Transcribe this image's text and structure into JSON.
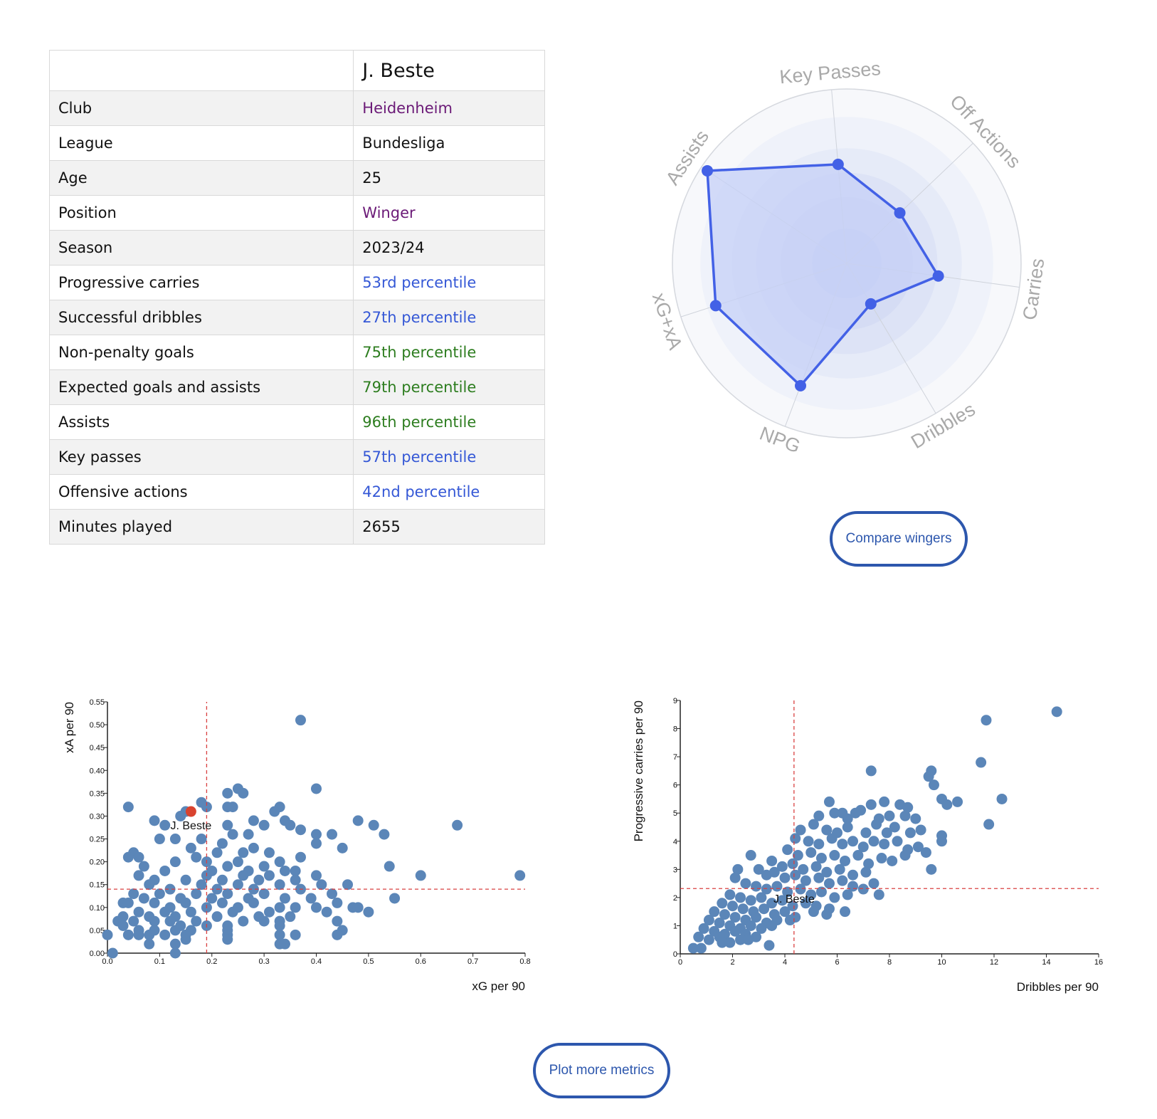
{
  "table": {
    "player_name": "J. Beste",
    "rows": [
      {
        "label": "Club",
        "value": "Heidenheim",
        "color": "#6b1a77"
      },
      {
        "label": "League",
        "value": "Bundesliga",
        "color": "#111111"
      },
      {
        "label": "Age",
        "value": "25",
        "color": "#111111"
      },
      {
        "label": "Position",
        "value": "Winger",
        "color": "#6b1a77"
      },
      {
        "label": "Season",
        "value": "2023/24",
        "color": "#111111"
      },
      {
        "label": "Progressive carries",
        "value": "53rd percentile",
        "color": "#3558d6"
      },
      {
        "label": "Successful dribbles",
        "value": "27th percentile",
        "color": "#3558d6"
      },
      {
        "label": "Non-penalty goals",
        "value": "75th percentile",
        "color": "#2d7d1f"
      },
      {
        "label": "Expected goals and assists",
        "value": "79th percentile",
        "color": "#2d7d1f"
      },
      {
        "label": "Assists",
        "value": "96th percentile",
        "color": "#2d7d1f"
      },
      {
        "label": "Key passes",
        "value": "57th percentile",
        "color": "#3558d6"
      },
      {
        "label": "Offensive actions",
        "value": "42nd percentile",
        "color": "#3558d6"
      },
      {
        "label": "Minutes played",
        "value": "2655",
        "color": "#111111"
      }
    ]
  },
  "buttons": {
    "compare_label": "Compare wingers",
    "plot_more_label": "Plot more metrics"
  },
  "colors": {
    "radar_line": "#4361e6",
    "radar_fill": "#c5d0f7",
    "scatter_point": "#5b86b8",
    "highlight_point": "#d9432f",
    "reference_line": "#d94040",
    "button_border": "#2d57ad"
  },
  "chart_data": [
    {
      "type": "radar",
      "axes": [
        "Key Passes",
        "Off Actions",
        "Carries",
        "Dribbles",
        "NPG",
        "xG+xA",
        "Assists"
      ],
      "values": [
        0.57,
        0.42,
        0.53,
        0.27,
        0.75,
        0.79,
        0.96
      ],
      "max": 1
    },
    {
      "type": "scatter",
      "xlabel": "xG per 90",
      "ylabel": "xA per 90",
      "xlim": [
        0,
        0.8
      ],
      "ylim": [
        0,
        0.55
      ],
      "xticks": [
        "0.0",
        "0.1",
        "0.2",
        "0.3",
        "0.4",
        "0.5",
        "0.6",
        "0.7",
        "0.8"
      ],
      "yticks": [
        "0.00",
        "0.05",
        "0.10",
        "0.15",
        "0.20",
        "0.25",
        "0.30",
        "0.35",
        "0.40",
        "0.45",
        "0.50",
        "0.55"
      ],
      "xref": 0.19,
      "yref": 0.14,
      "highlight": {
        "name": "J. Beste",
        "x": 0.16,
        "y": 0.31
      },
      "points": [
        [
          0.37,
          0.51
        ],
        [
          0.4,
          0.36
        ],
        [
          0.25,
          0.36
        ],
        [
          0.26,
          0.35
        ],
        [
          0.23,
          0.35
        ],
        [
          0.04,
          0.32
        ],
        [
          0.18,
          0.33
        ],
        [
          0.24,
          0.32
        ],
        [
          0.23,
          0.32
        ],
        [
          0.19,
          0.32
        ],
        [
          0.33,
          0.32
        ],
        [
          0.32,
          0.31
        ],
        [
          0.15,
          0.31
        ],
        [
          0.14,
          0.3
        ],
        [
          0.09,
          0.29
        ],
        [
          0.48,
          0.29
        ],
        [
          0.67,
          0.28
        ],
        [
          0.51,
          0.28
        ],
        [
          0.11,
          0.28
        ],
        [
          0.23,
          0.28
        ],
        [
          0.28,
          0.29
        ],
        [
          0.3,
          0.28
        ],
        [
          0.34,
          0.29
        ],
        [
          0.35,
          0.28
        ],
        [
          0.37,
          0.27
        ],
        [
          0.4,
          0.26
        ],
        [
          0.43,
          0.26
        ],
        [
          0.53,
          0.26
        ],
        [
          0.1,
          0.25
        ],
        [
          0.13,
          0.25
        ],
        [
          0.18,
          0.25
        ],
        [
          0.24,
          0.26
        ],
        [
          0.27,
          0.26
        ],
        [
          0.22,
          0.24
        ],
        [
          0.4,
          0.24
        ],
        [
          0.45,
          0.23
        ],
        [
          0.16,
          0.23
        ],
        [
          0.21,
          0.22
        ],
        [
          0.26,
          0.22
        ],
        [
          0.28,
          0.23
        ],
        [
          0.31,
          0.22
        ],
        [
          0.37,
          0.21
        ],
        [
          0.05,
          0.22
        ],
        [
          0.04,
          0.21
        ],
        [
          0.06,
          0.21
        ],
        [
          0.13,
          0.2
        ],
        [
          0.17,
          0.21
        ],
        [
          0.19,
          0.2
        ],
        [
          0.23,
          0.19
        ],
        [
          0.25,
          0.2
        ],
        [
          0.3,
          0.19
        ],
        [
          0.33,
          0.2
        ],
        [
          0.36,
          0.18
        ],
        [
          0.07,
          0.19
        ],
        [
          0.11,
          0.18
        ],
        [
          0.2,
          0.18
        ],
        [
          0.27,
          0.18
        ],
        [
          0.34,
          0.18
        ],
        [
          0.4,
          0.17
        ],
        [
          0.54,
          0.19
        ],
        [
          0.6,
          0.17
        ],
        [
          0.79,
          0.17
        ],
        [
          0.06,
          0.17
        ],
        [
          0.09,
          0.16
        ],
        [
          0.15,
          0.16
        ],
        [
          0.19,
          0.17
        ],
        [
          0.22,
          0.16
        ],
        [
          0.26,
          0.17
        ],
        [
          0.29,
          0.16
        ],
        [
          0.31,
          0.17
        ],
        [
          0.36,
          0.16
        ],
        [
          0.41,
          0.15
        ],
        [
          0.46,
          0.15
        ],
        [
          0.08,
          0.15
        ],
        [
          0.12,
          0.14
        ],
        [
          0.18,
          0.15
        ],
        [
          0.21,
          0.14
        ],
        [
          0.25,
          0.15
        ],
        [
          0.28,
          0.14
        ],
        [
          0.33,
          0.15
        ],
        [
          0.37,
          0.14
        ],
        [
          0.43,
          0.13
        ],
        [
          0.05,
          0.13
        ],
        [
          0.07,
          0.12
        ],
        [
          0.1,
          0.13
        ],
        [
          0.14,
          0.12
        ],
        [
          0.17,
          0.13
        ],
        [
          0.2,
          0.12
        ],
        [
          0.23,
          0.13
        ],
        [
          0.27,
          0.12
        ],
        [
          0.3,
          0.13
        ],
        [
          0.34,
          0.12
        ],
        [
          0.39,
          0.12
        ],
        [
          0.44,
          0.11
        ],
        [
          0.55,
          0.12
        ],
        [
          0.03,
          0.11
        ],
        [
          0.04,
          0.11
        ],
        [
          0.09,
          0.11
        ],
        [
          0.12,
          0.1
        ],
        [
          0.15,
          0.11
        ],
        [
          0.19,
          0.1
        ],
        [
          0.22,
          0.11
        ],
        [
          0.25,
          0.1
        ],
        [
          0.28,
          0.11
        ],
        [
          0.33,
          0.1
        ],
        [
          0.36,
          0.1
        ],
        [
          0.4,
          0.1
        ],
        [
          0.47,
          0.1
        ],
        [
          0.48,
          0.1
        ],
        [
          0.5,
          0.09
        ],
        [
          0.06,
          0.09
        ],
        [
          0.08,
          0.08
        ],
        [
          0.11,
          0.09
        ],
        [
          0.13,
          0.08
        ],
        [
          0.16,
          0.09
        ],
        [
          0.21,
          0.08
        ],
        [
          0.24,
          0.09
        ],
        [
          0.29,
          0.08
        ],
        [
          0.31,
          0.09
        ],
        [
          0.35,
          0.08
        ],
        [
          0.42,
          0.09
        ],
        [
          0.02,
          0.07
        ],
        [
          0.03,
          0.08
        ],
        [
          0.05,
          0.07
        ],
        [
          0.09,
          0.07
        ],
        [
          0.12,
          0.07
        ],
        [
          0.14,
          0.06
        ],
        [
          0.17,
          0.07
        ],
        [
          0.23,
          0.06
        ],
        [
          0.26,
          0.07
        ],
        [
          0.3,
          0.07
        ],
        [
          0.33,
          0.07
        ],
        [
          0.44,
          0.07
        ],
        [
          0.03,
          0.06
        ],
        [
          0.06,
          0.05
        ],
        [
          0.09,
          0.05
        ],
        [
          0.13,
          0.05
        ],
        [
          0.16,
          0.05
        ],
        [
          0.19,
          0.06
        ],
        [
          0.23,
          0.05
        ],
        [
          0.33,
          0.06
        ],
        [
          0.36,
          0.04
        ],
        [
          0.45,
          0.05
        ],
        [
          0.0,
          0.04
        ],
        [
          0.04,
          0.04
        ],
        [
          0.06,
          0.04
        ],
        [
          0.08,
          0.04
        ],
        [
          0.11,
          0.04
        ],
        [
          0.15,
          0.04
        ],
        [
          0.23,
          0.04
        ],
        [
          0.33,
          0.04
        ],
        [
          0.44,
          0.04
        ],
        [
          0.08,
          0.02
        ],
        [
          0.13,
          0.02
        ],
        [
          0.15,
          0.03
        ],
        [
          0.23,
          0.03
        ],
        [
          0.33,
          0.02
        ],
        [
          0.34,
          0.02
        ],
        [
          0.13,
          0.0
        ],
        [
          0.01,
          0.0
        ]
      ]
    },
    {
      "type": "scatter",
      "xlabel": "Dribbles per 90",
      "ylabel": "Progressive carries per 90",
      "xlim": [
        0,
        16
      ],
      "ylim": [
        0,
        9
      ],
      "xticks": [
        "0",
        "2",
        "4",
        "6",
        "8",
        "10",
        "12",
        "14",
        "16"
      ],
      "yticks": [
        "0",
        "1",
        "2",
        "3",
        "4",
        "5",
        "6",
        "7",
        "8",
        "9"
      ],
      "xref": 4.35,
      "yref": 2.32,
      "highlight": {
        "name": "J. Beste",
        "x": 4.35,
        "y": 2.45
      },
      "points": [
        [
          14.4,
          8.6
        ],
        [
          11.7,
          8.3
        ],
        [
          11.5,
          6.8
        ],
        [
          7.3,
          6.5
        ],
        [
          9.6,
          6.5
        ],
        [
          9.5,
          6.3
        ],
        [
          9.7,
          6.0
        ],
        [
          10.0,
          5.5
        ],
        [
          10.2,
          5.3
        ],
        [
          10.6,
          5.4
        ],
        [
          12.3,
          5.5
        ],
        [
          11.8,
          4.6
        ],
        [
          5.7,
          5.4
        ],
        [
          6.2,
          5.0
        ],
        [
          6.9,
          5.1
        ],
        [
          7.3,
          5.3
        ],
        [
          7.8,
          5.4
        ],
        [
          8.4,
          5.3
        ],
        [
          8.7,
          5.2
        ],
        [
          5.3,
          4.9
        ],
        [
          5.9,
          5.0
        ],
        [
          6.4,
          4.8
        ],
        [
          6.7,
          5.0
        ],
        [
          7.6,
          4.8
        ],
        [
          8.0,
          4.9
        ],
        [
          8.6,
          4.9
        ],
        [
          9.0,
          4.8
        ],
        [
          4.6,
          4.4
        ],
        [
          5.1,
          4.6
        ],
        [
          5.6,
          4.4
        ],
        [
          6.0,
          4.3
        ],
        [
          6.4,
          4.5
        ],
        [
          7.1,
          4.3
        ],
        [
          7.5,
          4.6
        ],
        [
          7.9,
          4.3
        ],
        [
          8.2,
          4.5
        ],
        [
          8.8,
          4.3
        ],
        [
          9.2,
          4.4
        ],
        [
          10.0,
          4.2
        ],
        [
          10.0,
          4.0
        ],
        [
          4.4,
          4.1
        ],
        [
          4.9,
          4.0
        ],
        [
          5.3,
          3.9
        ],
        [
          5.8,
          4.1
        ],
        [
          6.2,
          3.9
        ],
        [
          6.6,
          4.0
        ],
        [
          7.0,
          3.8
        ],
        [
          7.4,
          4.0
        ],
        [
          7.8,
          3.9
        ],
        [
          8.3,
          4.0
        ],
        [
          8.7,
          3.7
        ],
        [
          9.1,
          3.8
        ],
        [
          9.4,
          3.6
        ],
        [
          4.1,
          3.7
        ],
        [
          4.5,
          3.5
        ],
        [
          5.0,
          3.6
        ],
        [
          5.4,
          3.4
        ],
        [
          5.9,
          3.5
        ],
        [
          6.3,
          3.3
        ],
        [
          6.8,
          3.5
        ],
        [
          7.2,
          3.2
        ],
        [
          7.7,
          3.4
        ],
        [
          8.1,
          3.3
        ],
        [
          8.6,
          3.5
        ],
        [
          3.5,
          3.3
        ],
        [
          3.9,
          3.1
        ],
        [
          4.3,
          3.2
        ],
        [
          4.7,
          3.0
        ],
        [
          5.2,
          3.1
        ],
        [
          5.6,
          2.9
        ],
        [
          6.1,
          3.0
        ],
        [
          6.6,
          2.8
        ],
        [
          7.1,
          2.9
        ],
        [
          9.6,
          3.0
        ],
        [
          2.2,
          3.0
        ],
        [
          2.7,
          3.5
        ],
        [
          3.0,
          3.0
        ],
        [
          3.3,
          2.8
        ],
        [
          3.6,
          2.9
        ],
        [
          4.0,
          2.7
        ],
        [
          4.4,
          2.8
        ],
        [
          4.8,
          2.6
        ],
        [
          5.3,
          2.7
        ],
        [
          5.7,
          2.5
        ],
        [
          6.2,
          2.6
        ],
        [
          6.6,
          2.4
        ],
        [
          7.0,
          2.3
        ],
        [
          7.4,
          2.5
        ],
        [
          2.1,
          2.7
        ],
        [
          2.5,
          2.5
        ],
        [
          2.9,
          2.4
        ],
        [
          3.3,
          2.3
        ],
        [
          3.7,
          2.4
        ],
        [
          4.1,
          2.2
        ],
        [
          4.6,
          2.3
        ],
        [
          5.0,
          2.1
        ],
        [
          5.4,
          2.2
        ],
        [
          5.9,
          2.0
        ],
        [
          6.4,
          2.1
        ],
        [
          7.6,
          2.1
        ],
        [
          1.9,
          2.1
        ],
        [
          2.3,
          2.0
        ],
        [
          2.7,
          1.9
        ],
        [
          3.1,
          2.0
        ],
        [
          3.5,
          1.8
        ],
        [
          3.9,
          1.9
        ],
        [
          4.3,
          1.7
        ],
        [
          4.8,
          1.8
        ],
        [
          5.2,
          1.7
        ],
        [
          5.7,
          1.6
        ],
        [
          1.6,
          1.8
        ],
        [
          2.0,
          1.7
        ],
        [
          2.4,
          1.6
        ],
        [
          2.8,
          1.5
        ],
        [
          3.2,
          1.6
        ],
        [
          3.6,
          1.4
        ],
        [
          4.0,
          1.5
        ],
        [
          4.4,
          1.3
        ],
        [
          5.1,
          1.5
        ],
        [
          5.6,
          1.4
        ],
        [
          6.3,
          1.5
        ],
        [
          1.3,
          1.5
        ],
        [
          1.7,
          1.4
        ],
        [
          2.1,
          1.3
        ],
        [
          2.5,
          1.2
        ],
        [
          2.9,
          1.3
        ],
        [
          3.3,
          1.1
        ],
        [
          3.7,
          1.2
        ],
        [
          4.2,
          1.2
        ],
        [
          1.1,
          1.2
        ],
        [
          1.5,
          1.1
        ],
        [
          1.9,
          1.0
        ],
        [
          2.3,
          0.9
        ],
        [
          2.7,
          1.0
        ],
        [
          3.1,
          0.9
        ],
        [
          3.5,
          1.0
        ],
        [
          0.9,
          0.9
        ],
        [
          1.3,
          0.8
        ],
        [
          1.7,
          0.7
        ],
        [
          2.1,
          0.8
        ],
        [
          2.5,
          0.7
        ],
        [
          2.9,
          0.6
        ],
        [
          0.7,
          0.6
        ],
        [
          1.1,
          0.5
        ],
        [
          1.5,
          0.6
        ],
        [
          1.9,
          0.4
        ],
        [
          2.3,
          0.5
        ],
        [
          3.4,
          0.3
        ],
        [
          0.5,
          0.2
        ],
        [
          0.8,
          0.2
        ],
        [
          1.6,
          0.4
        ],
        [
          2.6,
          0.5
        ]
      ]
    }
  ]
}
